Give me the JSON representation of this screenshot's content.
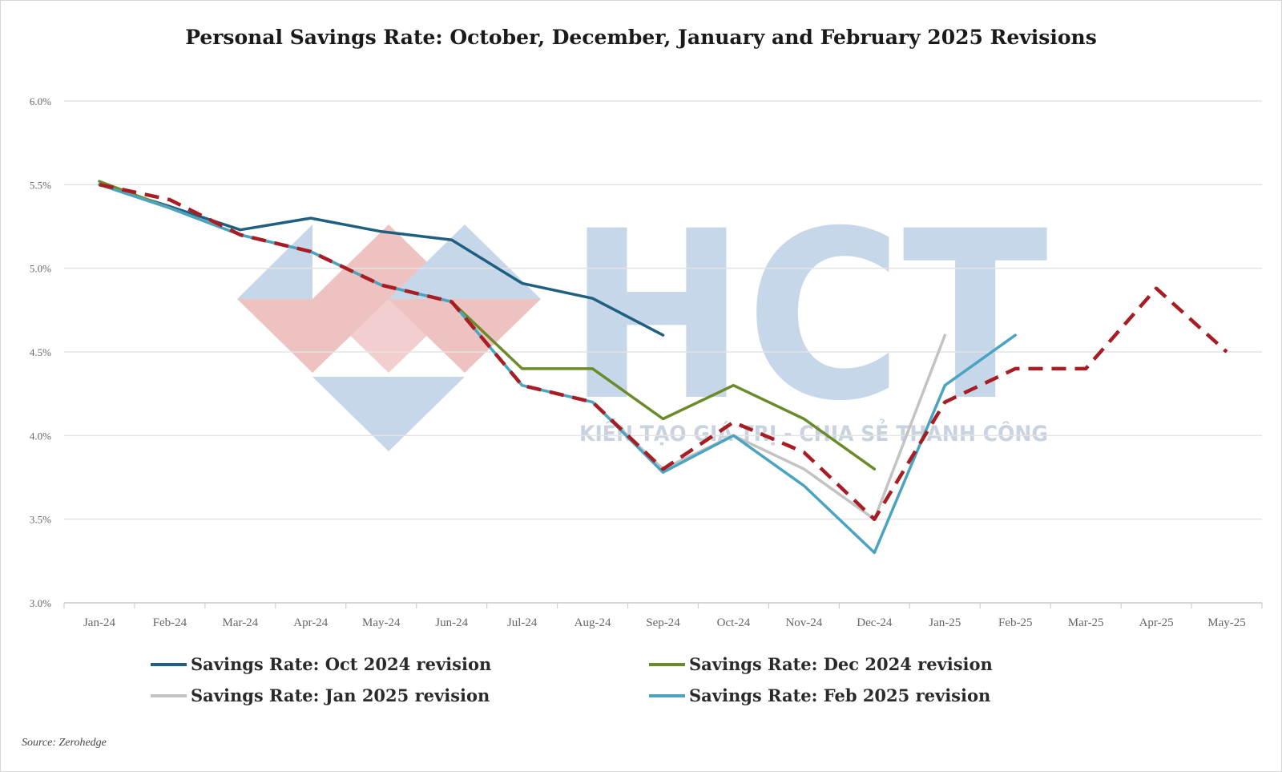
{
  "chart_data": {
    "type": "line",
    "title": "Personal Savings Rate: October, December, January and February 2025 Revisions",
    "xlabel": "",
    "ylabel": "",
    "categories": [
      "Jan-24",
      "Feb-24",
      "Mar-24",
      "Apr-24",
      "May-24",
      "Jun-24",
      "Jul-24",
      "Aug-24",
      "Sep-24",
      "Oct-24",
      "Nov-24",
      "Dec-24",
      "Jan-25",
      "Feb-25",
      "Mar-25",
      "Apr-25",
      "May-25"
    ],
    "ylim": [
      3.0,
      6.0
    ],
    "yticks": [
      3.0,
      3.5,
      4.0,
      4.5,
      5.0,
      5.5,
      6.0
    ],
    "ytick_labels": [
      "3.0%",
      "3.5%",
      "4.0%",
      "4.5%",
      "5.0%",
      "5.5%",
      "6.0%"
    ],
    "grid": "horizontal",
    "legend_position": "bottom",
    "series": [
      {
        "name": "Savings Rate: Oct 2024 revision",
        "color": "#1f5f7f",
        "dash": "solid",
        "values": [
          5.5,
          5.37,
          5.23,
          5.3,
          5.22,
          5.17,
          4.91,
          4.82,
          4.6,
          null,
          null,
          null,
          null,
          null,
          null,
          null,
          null
        ]
      },
      {
        "name": "Savings Rate: Dec 2024 revision",
        "color": "#6b8a2a",
        "dash": "solid",
        "values": [
          5.52,
          5.36,
          5.2,
          5.1,
          4.9,
          4.8,
          4.4,
          4.4,
          4.1,
          4.3,
          4.1,
          3.8,
          null,
          null,
          null,
          null,
          null
        ]
      },
      {
        "name": "Savings Rate: Jan 2025 revision",
        "color": "#c3c3c3",
        "dash": "solid",
        "values": [
          5.5,
          5.36,
          5.2,
          5.1,
          4.9,
          4.8,
          4.3,
          4.2,
          3.8,
          4.0,
          3.8,
          3.5,
          4.6,
          null,
          null,
          null,
          null
        ]
      },
      {
        "name": "Savings Rate: Feb 2025 revision",
        "color": "#4aa3bf",
        "dash": "solid",
        "values": [
          5.5,
          5.36,
          5.2,
          5.1,
          4.9,
          4.8,
          4.3,
          4.2,
          3.78,
          4.0,
          3.7,
          3.3,
          4.3,
          4.6,
          null,
          null,
          null
        ]
      },
      {
        "name": "",
        "color": "#a81c24",
        "dash": "dashed",
        "values": [
          5.5,
          5.41,
          5.2,
          5.1,
          4.9,
          4.8,
          4.3,
          4.2,
          3.8,
          4.08,
          3.9,
          3.5,
          4.2,
          4.4,
          4.4,
          4.88,
          4.5
        ]
      }
    ],
    "source": "Source: Zerohedge"
  },
  "watermark": {
    "letters": "HCT",
    "tagline": "KIẾN TẠO GIÁ TRỊ - CHIA SẺ THÀNH CÔNG",
    "blue": "#c7d7ea",
    "red": "#efc2c2"
  }
}
